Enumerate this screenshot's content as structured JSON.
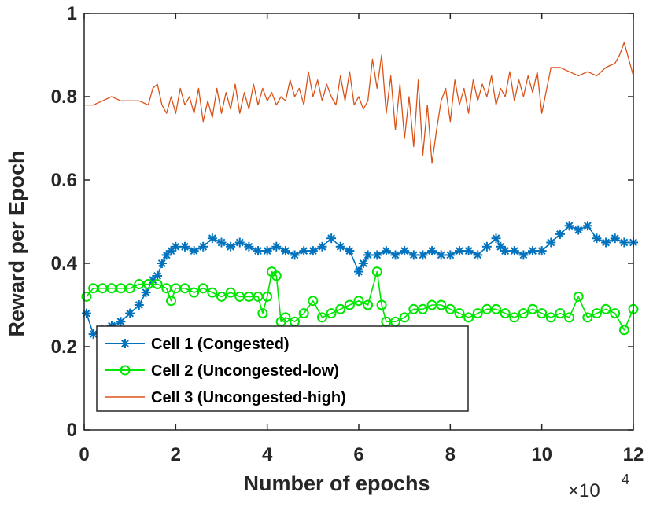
{
  "chart_data": {
    "type": "line",
    "title": "",
    "xlabel": "Number of epochs",
    "ylabel": "Reward per Epoch",
    "x_multiplier_label": "×10",
    "x_multiplier_exp": "4",
    "xlim": [
      0,
      12
    ],
    "ylim": [
      0,
      1
    ],
    "x_ticks": [
      0,
      2,
      4,
      6,
      8,
      10,
      12
    ],
    "x_tick_labels": [
      "0",
      "2",
      "4",
      "6",
      "8",
      "10",
      "12"
    ],
    "y_ticks": [
      0,
      0.2,
      0.4,
      0.6,
      0.8,
      1
    ],
    "y_tick_labels": [
      "0",
      "0.2",
      "0.4",
      "0.6",
      "0.8",
      "1"
    ],
    "grid": false,
    "legend_position": "lower-left",
    "series": [
      {
        "name": "Cell 1 (Congested)",
        "color": "#0072BD",
        "marker": "asterisk",
        "x": [
          0.05,
          0.2,
          0.4,
          0.6,
          0.8,
          1.0,
          1.2,
          1.35,
          1.5,
          1.6,
          1.7,
          1.8,
          1.9,
          2.0,
          2.2,
          2.4,
          2.6,
          2.8,
          3.0,
          3.2,
          3.4,
          3.6,
          3.8,
          4.0,
          4.2,
          4.4,
          4.6,
          4.8,
          5.0,
          5.2,
          5.4,
          5.6,
          5.8,
          6.0,
          6.1,
          6.2,
          6.4,
          6.6,
          6.8,
          7.0,
          7.2,
          7.4,
          7.6,
          7.8,
          8.0,
          8.2,
          8.4,
          8.6,
          8.8,
          9.0,
          9.1,
          9.2,
          9.4,
          9.6,
          9.8,
          10.0,
          10.2,
          10.4,
          10.6,
          10.8,
          11.0,
          11.2,
          11.4,
          11.6,
          11.8,
          12.0
        ],
        "values": [
          0.28,
          0.23,
          0.24,
          0.25,
          0.26,
          0.28,
          0.3,
          0.33,
          0.36,
          0.37,
          0.4,
          0.42,
          0.43,
          0.44,
          0.44,
          0.43,
          0.44,
          0.46,
          0.45,
          0.44,
          0.45,
          0.44,
          0.43,
          0.43,
          0.44,
          0.43,
          0.42,
          0.43,
          0.43,
          0.44,
          0.46,
          0.44,
          0.43,
          0.38,
          0.4,
          0.42,
          0.42,
          0.43,
          0.42,
          0.43,
          0.42,
          0.42,
          0.43,
          0.42,
          0.42,
          0.43,
          0.43,
          0.42,
          0.44,
          0.46,
          0.44,
          0.43,
          0.43,
          0.42,
          0.43,
          0.43,
          0.45,
          0.47,
          0.49,
          0.48,
          0.49,
          0.46,
          0.45,
          0.46,
          0.45,
          0.45
        ]
      },
      {
        "name": "Cell 2 (Uncongested-low)",
        "color": "#00E600",
        "marker": "circle",
        "x": [
          0.05,
          0.2,
          0.4,
          0.6,
          0.8,
          1.0,
          1.2,
          1.4,
          1.6,
          1.8,
          1.9,
          2.0,
          2.2,
          2.4,
          2.6,
          2.8,
          3.0,
          3.2,
          3.4,
          3.6,
          3.8,
          3.9,
          4.0,
          4.1,
          4.2,
          4.3,
          4.4,
          4.6,
          4.8,
          5.0,
          5.2,
          5.4,
          5.6,
          5.8,
          6.0,
          6.2,
          6.4,
          6.5,
          6.6,
          6.8,
          7.0,
          7.2,
          7.4,
          7.6,
          7.8,
          8.0,
          8.2,
          8.4,
          8.6,
          8.8,
          9.0,
          9.2,
          9.4,
          9.6,
          9.8,
          10.0,
          10.2,
          10.4,
          10.6,
          10.8,
          11.0,
          11.2,
          11.4,
          11.6,
          11.8,
          12.0
        ],
        "values": [
          0.32,
          0.34,
          0.34,
          0.34,
          0.34,
          0.34,
          0.35,
          0.35,
          0.35,
          0.34,
          0.31,
          0.34,
          0.34,
          0.33,
          0.34,
          0.33,
          0.32,
          0.33,
          0.32,
          0.32,
          0.32,
          0.28,
          0.32,
          0.38,
          0.37,
          0.26,
          0.27,
          0.26,
          0.28,
          0.31,
          0.27,
          0.28,
          0.29,
          0.3,
          0.31,
          0.3,
          0.38,
          0.3,
          0.26,
          0.26,
          0.27,
          0.29,
          0.29,
          0.3,
          0.3,
          0.29,
          0.28,
          0.27,
          0.28,
          0.29,
          0.29,
          0.28,
          0.27,
          0.28,
          0.29,
          0.28,
          0.27,
          0.28,
          0.27,
          0.32,
          0.27,
          0.28,
          0.29,
          0.28,
          0.24,
          0.29
        ]
      },
      {
        "name": "Cell 3 (Uncongested-high)",
        "color": "#D95319",
        "marker": "none",
        "x": [
          0.0,
          0.2,
          0.4,
          0.6,
          0.8,
          1.0,
          1.2,
          1.4,
          1.5,
          1.6,
          1.7,
          1.8,
          1.9,
          2.0,
          2.1,
          2.2,
          2.3,
          2.4,
          2.5,
          2.6,
          2.7,
          2.8,
          2.9,
          3.0,
          3.1,
          3.2,
          3.3,
          3.4,
          3.5,
          3.6,
          3.7,
          3.8,
          3.9,
          4.0,
          4.1,
          4.2,
          4.3,
          4.4,
          4.5,
          4.6,
          4.7,
          4.8,
          4.9,
          5.0,
          5.1,
          5.2,
          5.3,
          5.4,
          5.5,
          5.6,
          5.7,
          5.8,
          5.9,
          6.0,
          6.1,
          6.2,
          6.3,
          6.4,
          6.5,
          6.6,
          6.7,
          6.8,
          6.9,
          7.0,
          7.1,
          7.2,
          7.3,
          7.4,
          7.5,
          7.6,
          7.7,
          7.8,
          7.9,
          8.0,
          8.1,
          8.2,
          8.3,
          8.4,
          8.5,
          8.6,
          8.7,
          8.8,
          8.9,
          9.0,
          9.1,
          9.2,
          9.3,
          9.4,
          9.5,
          9.6,
          9.7,
          9.8,
          9.9,
          10.0,
          10.2,
          10.4,
          10.6,
          10.8,
          11.0,
          11.2,
          11.4,
          11.6,
          11.7,
          11.8,
          11.9,
          12.0
        ],
        "values": [
          0.78,
          0.78,
          0.79,
          0.8,
          0.79,
          0.79,
          0.79,
          0.78,
          0.82,
          0.83,
          0.78,
          0.76,
          0.8,
          0.76,
          0.82,
          0.78,
          0.8,
          0.76,
          0.82,
          0.74,
          0.79,
          0.75,
          0.82,
          0.76,
          0.81,
          0.77,
          0.83,
          0.76,
          0.81,
          0.77,
          0.83,
          0.78,
          0.82,
          0.79,
          0.81,
          0.78,
          0.8,
          0.79,
          0.84,
          0.8,
          0.82,
          0.78,
          0.86,
          0.8,
          0.84,
          0.79,
          0.83,
          0.8,
          0.78,
          0.85,
          0.79,
          0.86,
          0.78,
          0.8,
          0.77,
          0.79,
          0.89,
          0.82,
          0.9,
          0.76,
          0.85,
          0.72,
          0.83,
          0.7,
          0.8,
          0.68,
          0.84,
          0.66,
          0.78,
          0.64,
          0.72,
          0.79,
          0.82,
          0.74,
          0.84,
          0.78,
          0.82,
          0.76,
          0.84,
          0.79,
          0.83,
          0.8,
          0.85,
          0.78,
          0.82,
          0.8,
          0.86,
          0.79,
          0.84,
          0.8,
          0.85,
          0.81,
          0.86,
          0.76,
          0.87,
          0.87,
          0.86,
          0.85,
          0.86,
          0.85,
          0.87,
          0.88,
          0.9,
          0.93,
          0.89,
          0.85
        ]
      }
    ]
  }
}
